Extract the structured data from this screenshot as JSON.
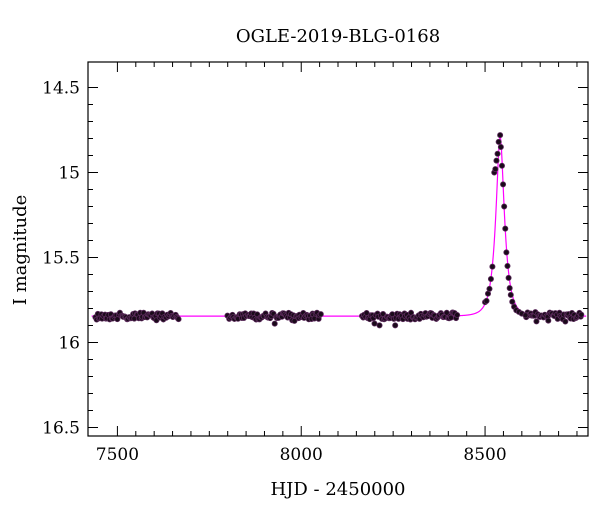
{
  "chart_data": {
    "type": "scatter",
    "title": "OGLE-2019-BLG-0168",
    "xlabel": "HJD - 2450000",
    "ylabel": "I magnitude",
    "xlim": [
      7420,
      8780
    ],
    "ylim": [
      14.35,
      16.55
    ],
    "y_inverted": true,
    "xticks": [
      7500,
      8000,
      8500
    ],
    "xtick_labels": [
      "7500",
      "8000",
      "8500"
    ],
    "yticks": [
      14.5,
      15,
      15.5,
      16,
      16.5
    ],
    "ytick_labels": [
      "14.5",
      "15",
      "15.5",
      "16",
      "16.5"
    ],
    "grid": false,
    "legend": "none",
    "colors": {
      "points": "#1a0a1a",
      "point_edge": "#5a2a5a",
      "model": "#ff00ff"
    },
    "model": {
      "name": "",
      "baseline": 15.845,
      "t0": 8541,
      "peak_mag": 14.79,
      "x_range": [
        7430,
        8775
      ]
    },
    "observations": {
      "seasons": [
        [
          7440,
          7670
        ],
        [
          7800,
          8055
        ],
        [
          8165,
          8425
        ],
        [
          8500,
          8765
        ]
      ],
      "peak_points": [
        [
          8525,
          15.0
        ],
        [
          8528,
          14.98
        ],
        [
          8531,
          14.93
        ],
        [
          8534,
          14.89
        ],
        [
          8537,
          14.82
        ],
        [
          8541,
          14.78
        ],
        [
          8543,
          14.85
        ],
        [
          8546,
          14.96
        ],
        [
          8549,
          15.07
        ],
        [
          8552,
          15.2
        ],
        [
          8555,
          15.33
        ],
        [
          8558,
          15.47
        ],
        [
          8561,
          15.55
        ],
        [
          8564,
          15.62
        ],
        [
          8567,
          15.68
        ],
        [
          8570,
          15.72
        ],
        [
          8574,
          15.76
        ],
        [
          8579,
          15.79
        ],
        [
          8585,
          15.81
        ],
        [
          8592,
          15.82
        ],
        [
          8600,
          15.83
        ],
        [
          8610,
          15.84
        ]
      ]
    }
  }
}
